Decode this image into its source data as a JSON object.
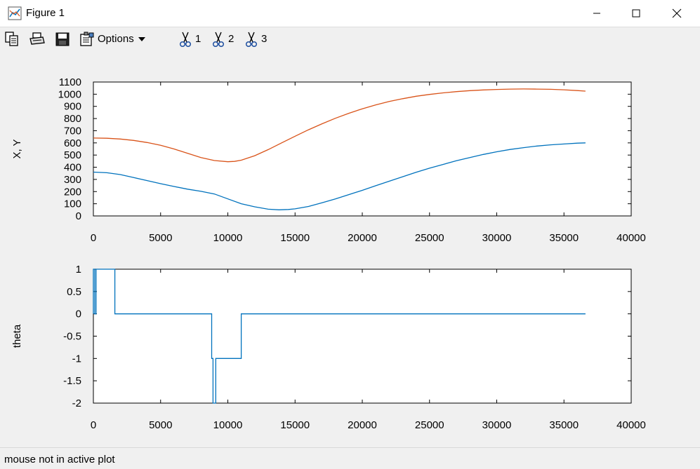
{
  "window": {
    "title": "Figure 1"
  },
  "toolbar": {
    "options_label": "Options",
    "cut_labels": [
      "1",
      "2",
      "3"
    ]
  },
  "status": {
    "text": "mouse not in active plot"
  },
  "chart_data": [
    {
      "type": "line",
      "ylabel": "X, Y",
      "xlim": [
        0,
        40000
      ],
      "ylim": [
        0,
        1100
      ],
      "xticks": [
        0,
        5000,
        10000,
        15000,
        20000,
        25000,
        30000,
        35000,
        40000
      ],
      "yticks": [
        0,
        100,
        200,
        300,
        400,
        500,
        600,
        700,
        800,
        900,
        1000,
        1100
      ],
      "series": [
        {
          "color": "#0072bd",
          "x": [
            0,
            1000,
            2000,
            3000,
            4000,
            5000,
            6000,
            7000,
            8000,
            9000,
            10000,
            11000,
            12000,
            13000,
            13800,
            14500,
            15000,
            16000,
            17000,
            18000,
            19000,
            20000,
            21000,
            22000,
            23000,
            24000,
            25000,
            26000,
            27000,
            28000,
            29000,
            30000,
            31000,
            32000,
            33000,
            34000,
            35000,
            36000,
            36600
          ],
          "y": [
            360,
            355,
            340,
            315,
            290,
            265,
            242,
            220,
            202,
            180,
            140,
            100,
            75,
            55,
            50,
            53,
            58,
            78,
            108,
            140,
            175,
            210,
            248,
            285,
            322,
            358,
            392,
            423,
            453,
            480,
            505,
            527,
            546,
            561,
            574,
            584,
            591,
            598,
            600
          ]
        },
        {
          "color": "#d95319",
          "x": [
            0,
            1000,
            2000,
            3000,
            4000,
            5000,
            6000,
            7000,
            8000,
            9000,
            10000,
            10500,
            11000,
            12000,
            13000,
            14000,
            15000,
            16000,
            17000,
            18000,
            19000,
            20000,
            21000,
            22000,
            23000,
            24000,
            25000,
            26000,
            27000,
            28000,
            29000,
            30000,
            31000,
            32000,
            33000,
            34000,
            35000,
            36000,
            36600
          ],
          "y": [
            640,
            638,
            632,
            620,
            603,
            580,
            550,
            515,
            480,
            455,
            445,
            448,
            458,
            495,
            545,
            600,
            655,
            708,
            757,
            802,
            843,
            880,
            912,
            940,
            963,
            983,
            998,
            1011,
            1021,
            1029,
            1035,
            1039,
            1042,
            1043,
            1042,
            1040,
            1036,
            1030,
            1025
          ]
        }
      ]
    },
    {
      "type": "line",
      "ylabel": "theta",
      "xlim": [
        0,
        40000
      ],
      "ylim": [
        -2,
        1
      ],
      "xticks": [
        0,
        5000,
        10000,
        15000,
        20000,
        25000,
        30000,
        35000,
        40000
      ],
      "yticks": [
        1,
        0.5,
        0,
        -0.5,
        -1,
        -1.5,
        -2
      ],
      "series": [
        {
          "color": "#0072bd",
          "x": [
            0,
            0,
            100,
            100,
            200,
            200,
            1600,
            1600,
            8800,
            8800,
            8900,
            8900,
            9000,
            9000,
            9100,
            9100,
            11000,
            11000,
            36600
          ],
          "y": [
            0,
            1,
            1,
            0,
            0,
            1,
            1,
            0,
            0,
            -1,
            -1,
            -2,
            -2,
            -2,
            -2,
            -1,
            -1,
            0,
            0
          ]
        }
      ]
    }
  ]
}
